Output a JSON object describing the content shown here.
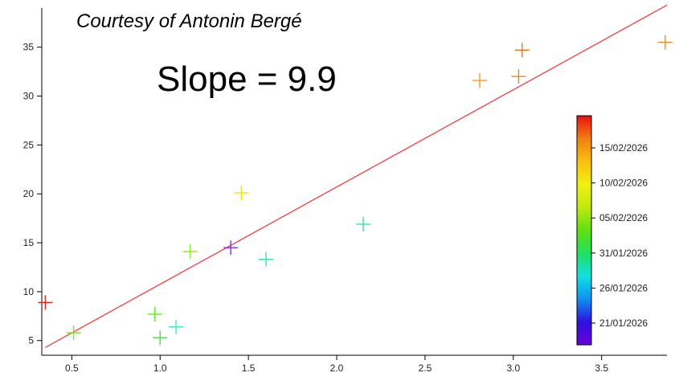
{
  "chart_data": {
    "type": "scatter",
    "title": "",
    "xlabel": "",
    "ylabel": "",
    "xlim": [
      0.33,
      3.87
    ],
    "ylim": [
      3.5,
      39
    ],
    "x_ticks": [
      {
        "value": 0.5,
        "label": "0.5"
      },
      {
        "value": 1.0,
        "label": "1.0"
      },
      {
        "value": 1.5,
        "label": "1.5"
      },
      {
        "value": 2.0,
        "label": "2.0"
      },
      {
        "value": 2.5,
        "label": "2.5"
      },
      {
        "value": 3.0,
        "label": "3.0"
      },
      {
        "value": 3.5,
        "label": "3.5"
      }
    ],
    "y_ticks": [
      {
        "value": 5,
        "label": "5"
      },
      {
        "value": 10,
        "label": "10"
      },
      {
        "value": 15,
        "label": "15"
      },
      {
        "value": 20,
        "label": "20"
      },
      {
        "value": 25,
        "label": "25"
      },
      {
        "value": 30,
        "label": "30"
      },
      {
        "value": 35,
        "label": "35"
      }
    ],
    "grid": false,
    "points": [
      {
        "x": 0.35,
        "y": 8.9,
        "color": "#e8201c"
      },
      {
        "x": 0.51,
        "y": 5.8,
        "color": "#7fe81a"
      },
      {
        "x": 0.97,
        "y": 7.7,
        "color": "#5ee821"
      },
      {
        "x": 1.0,
        "y": 5.3,
        "color": "#3de83a"
      },
      {
        "x": 1.09,
        "y": 6.4,
        "color": "#3ae8c8"
      },
      {
        "x": 1.17,
        "y": 14.1,
        "color": "#8fe82a"
      },
      {
        "x": 1.4,
        "y": 14.5,
        "color": "#8a2be2"
      },
      {
        "x": 1.46,
        "y": 20.1,
        "color": "#e8e81a"
      },
      {
        "x": 1.6,
        "y": 13.3,
        "color": "#2be8b0"
      },
      {
        "x": 2.15,
        "y": 16.9,
        "color": "#2ee8a0"
      },
      {
        "x": 2.81,
        "y": 31.6,
        "color": "#f0a020"
      },
      {
        "x": 3.03,
        "y": 32.0,
        "color": "#e88a1a"
      },
      {
        "x": 3.05,
        "y": 34.7,
        "color": "#e87418"
      },
      {
        "x": 3.86,
        "y": 35.5,
        "color": "#f08a20"
      }
    ],
    "fit_line": {
      "slope": 9.9,
      "x_start": 0.35,
      "x_end": 3.87,
      "y_start": 4.3,
      "y_end": 39.3,
      "color": "#f04040"
    },
    "annotations": {
      "credit": "Courtesy of Antonin Bergé",
      "slope_text": "Slope = 9.9"
    },
    "colorbar": {
      "placement": "right",
      "colors": [
        "#6a00d8",
        "#3010e0",
        "#1090f0",
        "#10e0e0",
        "#20e060",
        "#60e010",
        "#c0e810",
        "#f0f010",
        "#f8c010",
        "#f08010",
        "#e81010"
      ],
      "labels": [
        "21/01/2026",
        "26/01/2026",
        "31/01/2026",
        "05/02/2026",
        "10/02/2026",
        "15/02/2026"
      ]
    }
  }
}
